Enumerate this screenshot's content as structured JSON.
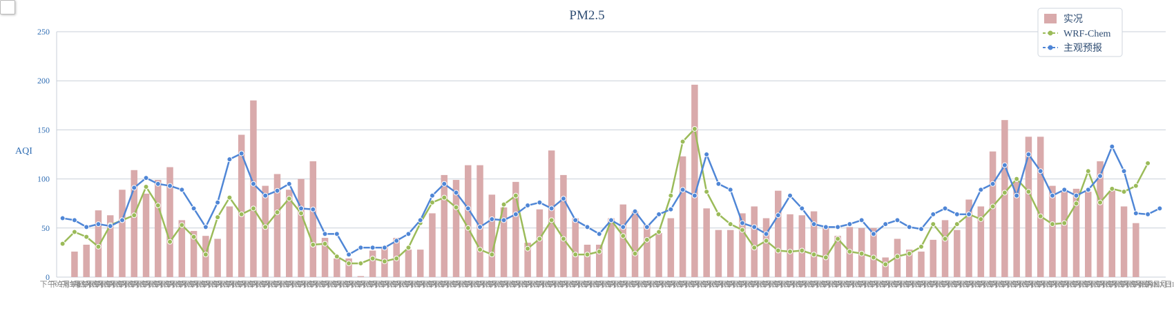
{
  "chart_data": {
    "type": "bar+line",
    "title": "PM2.5",
    "ylabel": "AQI",
    "ylim": [
      0,
      250
    ],
    "yticks": [
      0,
      50,
      100,
      150,
      200,
      250
    ],
    "x_label_first": "下午02月26日",
    "x_label_pattern": "下午03月XX日",
    "x_label_last": "下午03月31日",
    "legend_position": "top-right",
    "grid": true,
    "series": [
      {
        "name": "实况",
        "type": "bar",
        "color": "#d9aaab",
        "values": [
          null,
          26,
          33,
          68,
          63,
          89,
          109,
          85,
          99,
          112,
          58,
          47,
          42,
          39,
          72,
          145,
          180,
          93,
          105,
          89,
          100,
          118,
          40,
          19,
          19,
          1,
          27,
          31,
          40,
          28,
          28,
          65,
          104,
          99,
          114,
          114,
          84,
          71,
          97,
          35,
          69,
          129,
          104,
          60,
          33,
          33,
          60,
          74,
          67,
          53,
          45,
          60,
          123,
          196,
          70,
          48,
          48,
          65,
          72,
          60,
          88,
          64,
          63,
          67,
          50,
          42,
          51,
          50,
          50,
          20,
          39,
          28,
          26,
          38,
          58,
          48,
          79,
          72,
          128,
          160,
          97,
          143,
          143,
          93,
          88,
          90,
          87,
          118,
          88,
          72,
          55
        ]
      },
      {
        "name": "WRF-Chem",
        "type": "line",
        "color": "#9bbb59",
        "values": [
          34,
          46,
          41,
          31,
          53,
          58,
          63,
          92,
          73,
          36,
          53,
          41,
          23,
          61,
          81,
          64,
          70,
          51,
          66,
          80,
          65,
          33,
          34,
          21,
          14,
          14,
          19,
          16,
          19,
          30,
          55,
          76,
          81,
          71,
          50,
          28,
          23,
          74,
          83,
          29,
          39,
          58,
          39,
          23,
          23,
          26,
          58,
          42,
          24,
          38,
          46,
          83,
          138,
          151,
          87,
          64,
          54,
          48,
          30,
          37,
          27,
          26,
          27,
          23,
          20,
          39,
          26,
          24,
          20,
          13,
          21,
          24,
          31,
          54,
          39,
          54,
          64,
          59,
          72,
          86,
          100,
          87,
          62,
          54,
          55,
          75,
          108,
          76,
          90,
          87,
          93,
          116
        ]
      },
      {
        "name": "主观预报",
        "type": "line",
        "color": "#4f86d6",
        "values": [
          60,
          58,
          51,
          54,
          52,
          58,
          91,
          101,
          95,
          93,
          89,
          70,
          51,
          76,
          120,
          126,
          95,
          83,
          88,
          95,
          70,
          69,
          44,
          44,
          23,
          30,
          30,
          30,
          37,
          44,
          58,
          83,
          95,
          86,
          70,
          51,
          59,
          58,
          64,
          73,
          76,
          70,
          80,
          58,
          51,
          44,
          58,
          51,
          67,
          51,
          64,
          69,
          89,
          83,
          125,
          95,
          89,
          55,
          51,
          44,
          63,
          83,
          70,
          54,
          51,
          51,
          54,
          58,
          44,
          54,
          58,
          51,
          49,
          64,
          70,
          64,
          64,
          89,
          95,
          114,
          83,
          125,
          108,
          83,
          89,
          83,
          89,
          103,
          133,
          108,
          65,
          64,
          70
        ]
      }
    ]
  }
}
